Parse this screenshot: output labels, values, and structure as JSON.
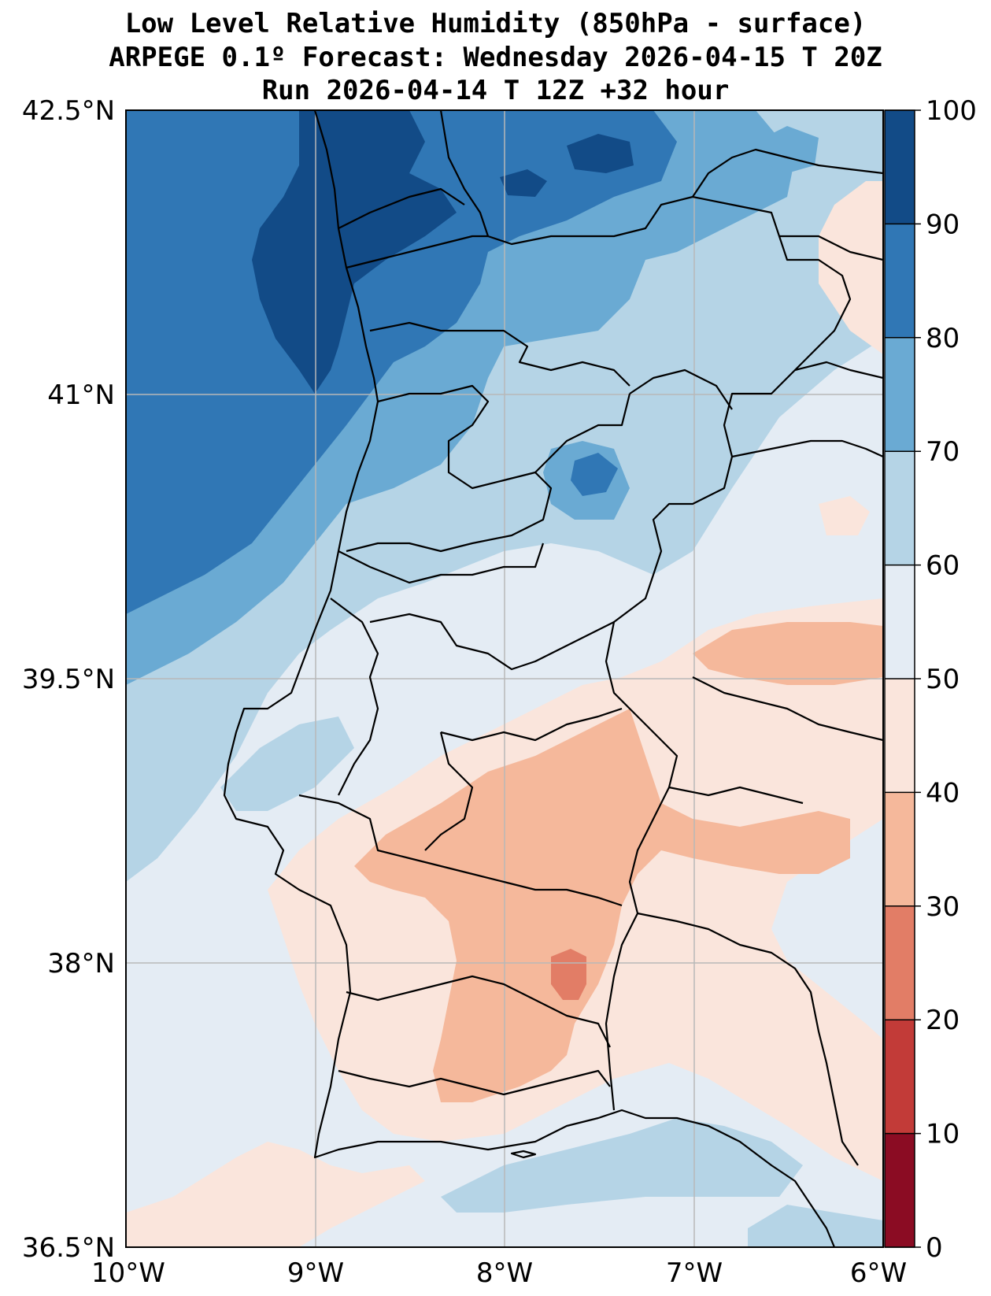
{
  "title": {
    "line1": "Low Level Relative Humidity (850hPa - surface)",
    "line2": "ARPEGE 0.1º Forecast: Wednesday 2026-04-15 T 20Z",
    "line3": "Run 2026-04-14 T 12Z +32 hour"
  },
  "map": {
    "lat_labels": [
      "42.5°N",
      "41°N",
      "39.5°N",
      "38°N",
      "36.5°N"
    ],
    "lon_labels": [
      "10°W",
      "9°W",
      "8°W",
      "7°W",
      "6°W"
    ],
    "lat_range": [
      36.5,
      42.5
    ],
    "lon_range": [
      -10,
      -6
    ],
    "field": "relative humidity (%)"
  },
  "colorbar": {
    "ticks": [
      "100",
      "90",
      "80",
      "70",
      "60",
      "50",
      "40",
      "30",
      "20",
      "10",
      "0"
    ],
    "range": [
      0,
      100
    ],
    "levels_colors": [
      "#67001f",
      "#b2182b",
      "#d6604d",
      "#f4a582",
      "#fddbc7",
      "#f7f7f7",
      "#d1e5f0",
      "#92c5de",
      "#4393c3",
      "#2166ac"
    ],
    "colors": {
      "0-10": "#8b0c23",
      "10-20": "#c23b38",
      "20-30": "#e27d66",
      "30-40": "#f5b89b",
      "40-50": "#fae5dc",
      "50-60": "#e4ecf4",
      "60-70": "#b5d4e6",
      "70-80": "#6aaad3",
      "80-90": "#3077b5",
      "90-100": "#124b87"
    }
  }
}
